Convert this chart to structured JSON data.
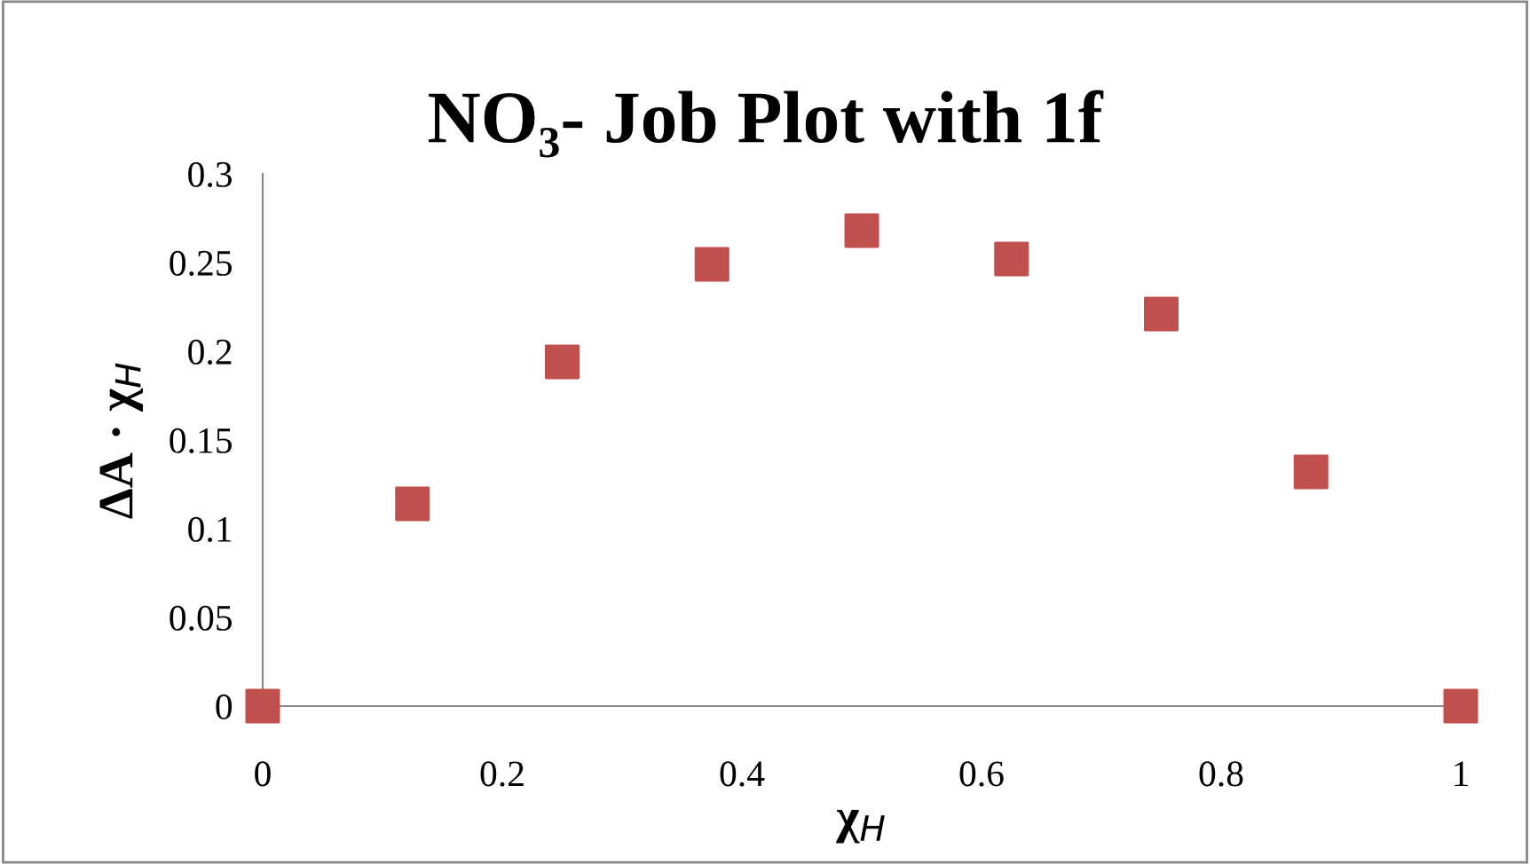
{
  "chart_data": {
    "type": "scatter",
    "title": "NO₃- Job Plot with 1f",
    "xlabel": "χ$_{H}$",
    "ylabel": "ΔA · χ$_{H}$",
    "x": [
      0,
      0.125,
      0.25,
      0.375,
      0.5,
      0.625,
      0.75,
      0.875,
      1
    ],
    "series": [
      {
        "color": "#c0504d",
        "values": [
          0,
          0.114,
          0.194,
          0.249,
          0.268,
          0.252,
          0.221,
          0.132,
          0
        ]
      }
    ],
    "xlim": [
      0,
      1
    ],
    "xticks": [
      0,
      0.2,
      0.4,
      0.6,
      0.8,
      1
    ],
    "ylim": [
      0,
      0.3
    ],
    "yticks": [
      0,
      0.05,
      0.1,
      0.15,
      0.2,
      0.25,
      0.3
    ],
    "marker": "square",
    "grid": false
  }
}
